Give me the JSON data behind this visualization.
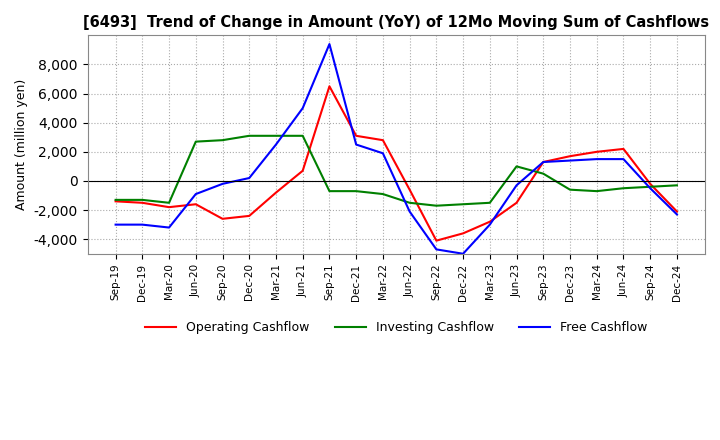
{
  "title": "[6493]  Trend of Change in Amount (YoY) of 12Mo Moving Sum of Cashflows",
  "ylabel": "Amount (million yen)",
  "ylim": [
    -5000,
    10000
  ],
  "yticks": [
    -4000,
    -2000,
    0,
    2000,
    4000,
    6000,
    8000
  ],
  "x_labels": [
    "Sep-19",
    "Dec-19",
    "Mar-20",
    "Jun-20",
    "Sep-20",
    "Dec-20",
    "Mar-21",
    "Jun-21",
    "Sep-21",
    "Dec-21",
    "Mar-22",
    "Jun-22",
    "Sep-22",
    "Dec-22",
    "Mar-23",
    "Jun-23",
    "Sep-23",
    "Dec-23",
    "Mar-24",
    "Jun-24",
    "Sep-24",
    "Dec-24"
  ],
  "operating": [
    -1400,
    -1500,
    -1800,
    -1600,
    -2600,
    -2400,
    -800,
    700,
    6500,
    3100,
    2800,
    -600,
    -4100,
    -3600,
    -2800,
    -1500,
    1300,
    1700,
    2000,
    2200,
    -200,
    -2100
  ],
  "investing": [
    -1300,
    -1300,
    -1500,
    2700,
    2800,
    3100,
    3100,
    3100,
    -700,
    -700,
    -900,
    -1500,
    -1700,
    -1600,
    -1500,
    1000,
    500,
    -600,
    -700,
    -500,
    -400,
    -300
  ],
  "free": [
    -3000,
    -3000,
    -3200,
    -900,
    -200,
    200,
    2500,
    5000,
    9400,
    2500,
    1900,
    -2100,
    -4700,
    -5000,
    -3000,
    -300,
    1300,
    1400,
    1500,
    1500,
    -500,
    -2300
  ],
  "operating_color": "#ff0000",
  "investing_color": "#008000",
  "free_color": "#0000ff",
  "background_color": "#ffffff",
  "grid_color": "#aaaaaa"
}
